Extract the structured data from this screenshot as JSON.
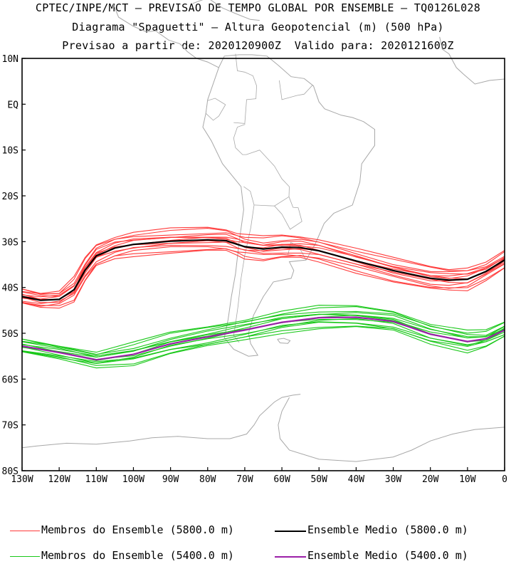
{
  "header": {
    "line1": "CPTEC/INPE/MCT – PREVISAO DE TEMPO GLOBAL POR ENSEMBLE – TQ0126L028",
    "line2": "Diagrama \"Spaguetti\" – Altura Geopotencial (m) (500 hPa)",
    "line3": "Previsao a partir de: 2020120900Z  Valido para: 2020121600Z"
  },
  "axes": {
    "lat_labels": [
      "10N",
      "EQ",
      "10S",
      "20S",
      "30S",
      "40S",
      "50S",
      "60S",
      "70S",
      "80S"
    ],
    "lon_labels": [
      "130W",
      "120W",
      "110W",
      "100W",
      "90W",
      "80W",
      "70W",
      "60W",
      "50W",
      "40W",
      "30W",
      "20W",
      "10W",
      "0"
    ]
  },
  "legend": {
    "members_5800": "Membros do Ensemble (5800.0 m)",
    "mean_5800": "Ensemble Medio (5800.0 m)",
    "members_5400": "Membros do Ensemble (5400.0 m)",
    "mean_5400": "Ensemble Medio (5400.0 m)"
  },
  "colors": {
    "members_5800": "#ff3b3b",
    "mean_5800": "#000000",
    "members_5400": "#19c819",
    "mean_5400": "#9b1fa8",
    "coastline": "#a8a8a8"
  },
  "chart_data": {
    "type": "map-contour",
    "projection": "lat-lon",
    "lon_range": [
      -130,
      0
    ],
    "lat_range": [
      -80,
      10
    ],
    "contours": [
      {
        "level_m": 5800,
        "mean": [
          [
            -130,
            -42
          ],
          [
            -125,
            -42.8
          ],
          [
            -120,
            -42.6
          ],
          [
            -116,
            -40.5
          ],
          [
            -113,
            -36.2
          ],
          [
            -110,
            -33.1
          ],
          [
            -105,
            -31.4
          ],
          [
            -100,
            -30.6
          ],
          [
            -90,
            -29.9
          ],
          [
            -80,
            -29.6
          ],
          [
            -75,
            -29.8
          ],
          [
            -72,
            -30.6
          ],
          [
            -70,
            -31.1
          ],
          [
            -65,
            -31.6
          ],
          [
            -60,
            -31.2
          ],
          [
            -55,
            -31.3
          ],
          [
            -50,
            -32.0
          ],
          [
            -40,
            -34.2
          ],
          [
            -30,
            -36.3
          ],
          [
            -20,
            -38.0
          ],
          [
            -15,
            -38.4
          ],
          [
            -10,
            -38.2
          ],
          [
            -5,
            -36.5
          ],
          [
            0,
            -34.0
          ]
        ],
        "member_count": 14,
        "member_offsets_deg": [
          0,
          1.1,
          -1.0,
          2.2,
          -2.0,
          0.6,
          -0.5,
          1.6,
          -1.5,
          0.3,
          -0.3,
          2.6,
          -2.4,
          0.9
        ]
      },
      {
        "level_m": 5400,
        "mean": [
          [
            -130,
            -52.8
          ],
          [
            -120,
            -54.2
          ],
          [
            -110,
            -55.8
          ],
          [
            -100,
            -54.6
          ],
          [
            -90,
            -52.3
          ],
          [
            -80,
            -50.8
          ],
          [
            -70,
            -49.3
          ],
          [
            -60,
            -47.6
          ],
          [
            -50,
            -46.6
          ],
          [
            -40,
            -46.5
          ],
          [
            -30,
            -47.4
          ],
          [
            -20,
            -50.2
          ],
          [
            -10,
            -51.8
          ],
          [
            -5,
            -51.2
          ],
          [
            0,
            -49.3
          ]
        ],
        "member_count": 14,
        "member_offsets_deg": [
          0,
          1.0,
          -1.0,
          2.0,
          -1.8,
          0.5,
          -0.6,
          1.5,
          -1.3,
          0.2,
          -0.2,
          2.4,
          -2.2,
          0.8
        ]
      }
    ]
  }
}
